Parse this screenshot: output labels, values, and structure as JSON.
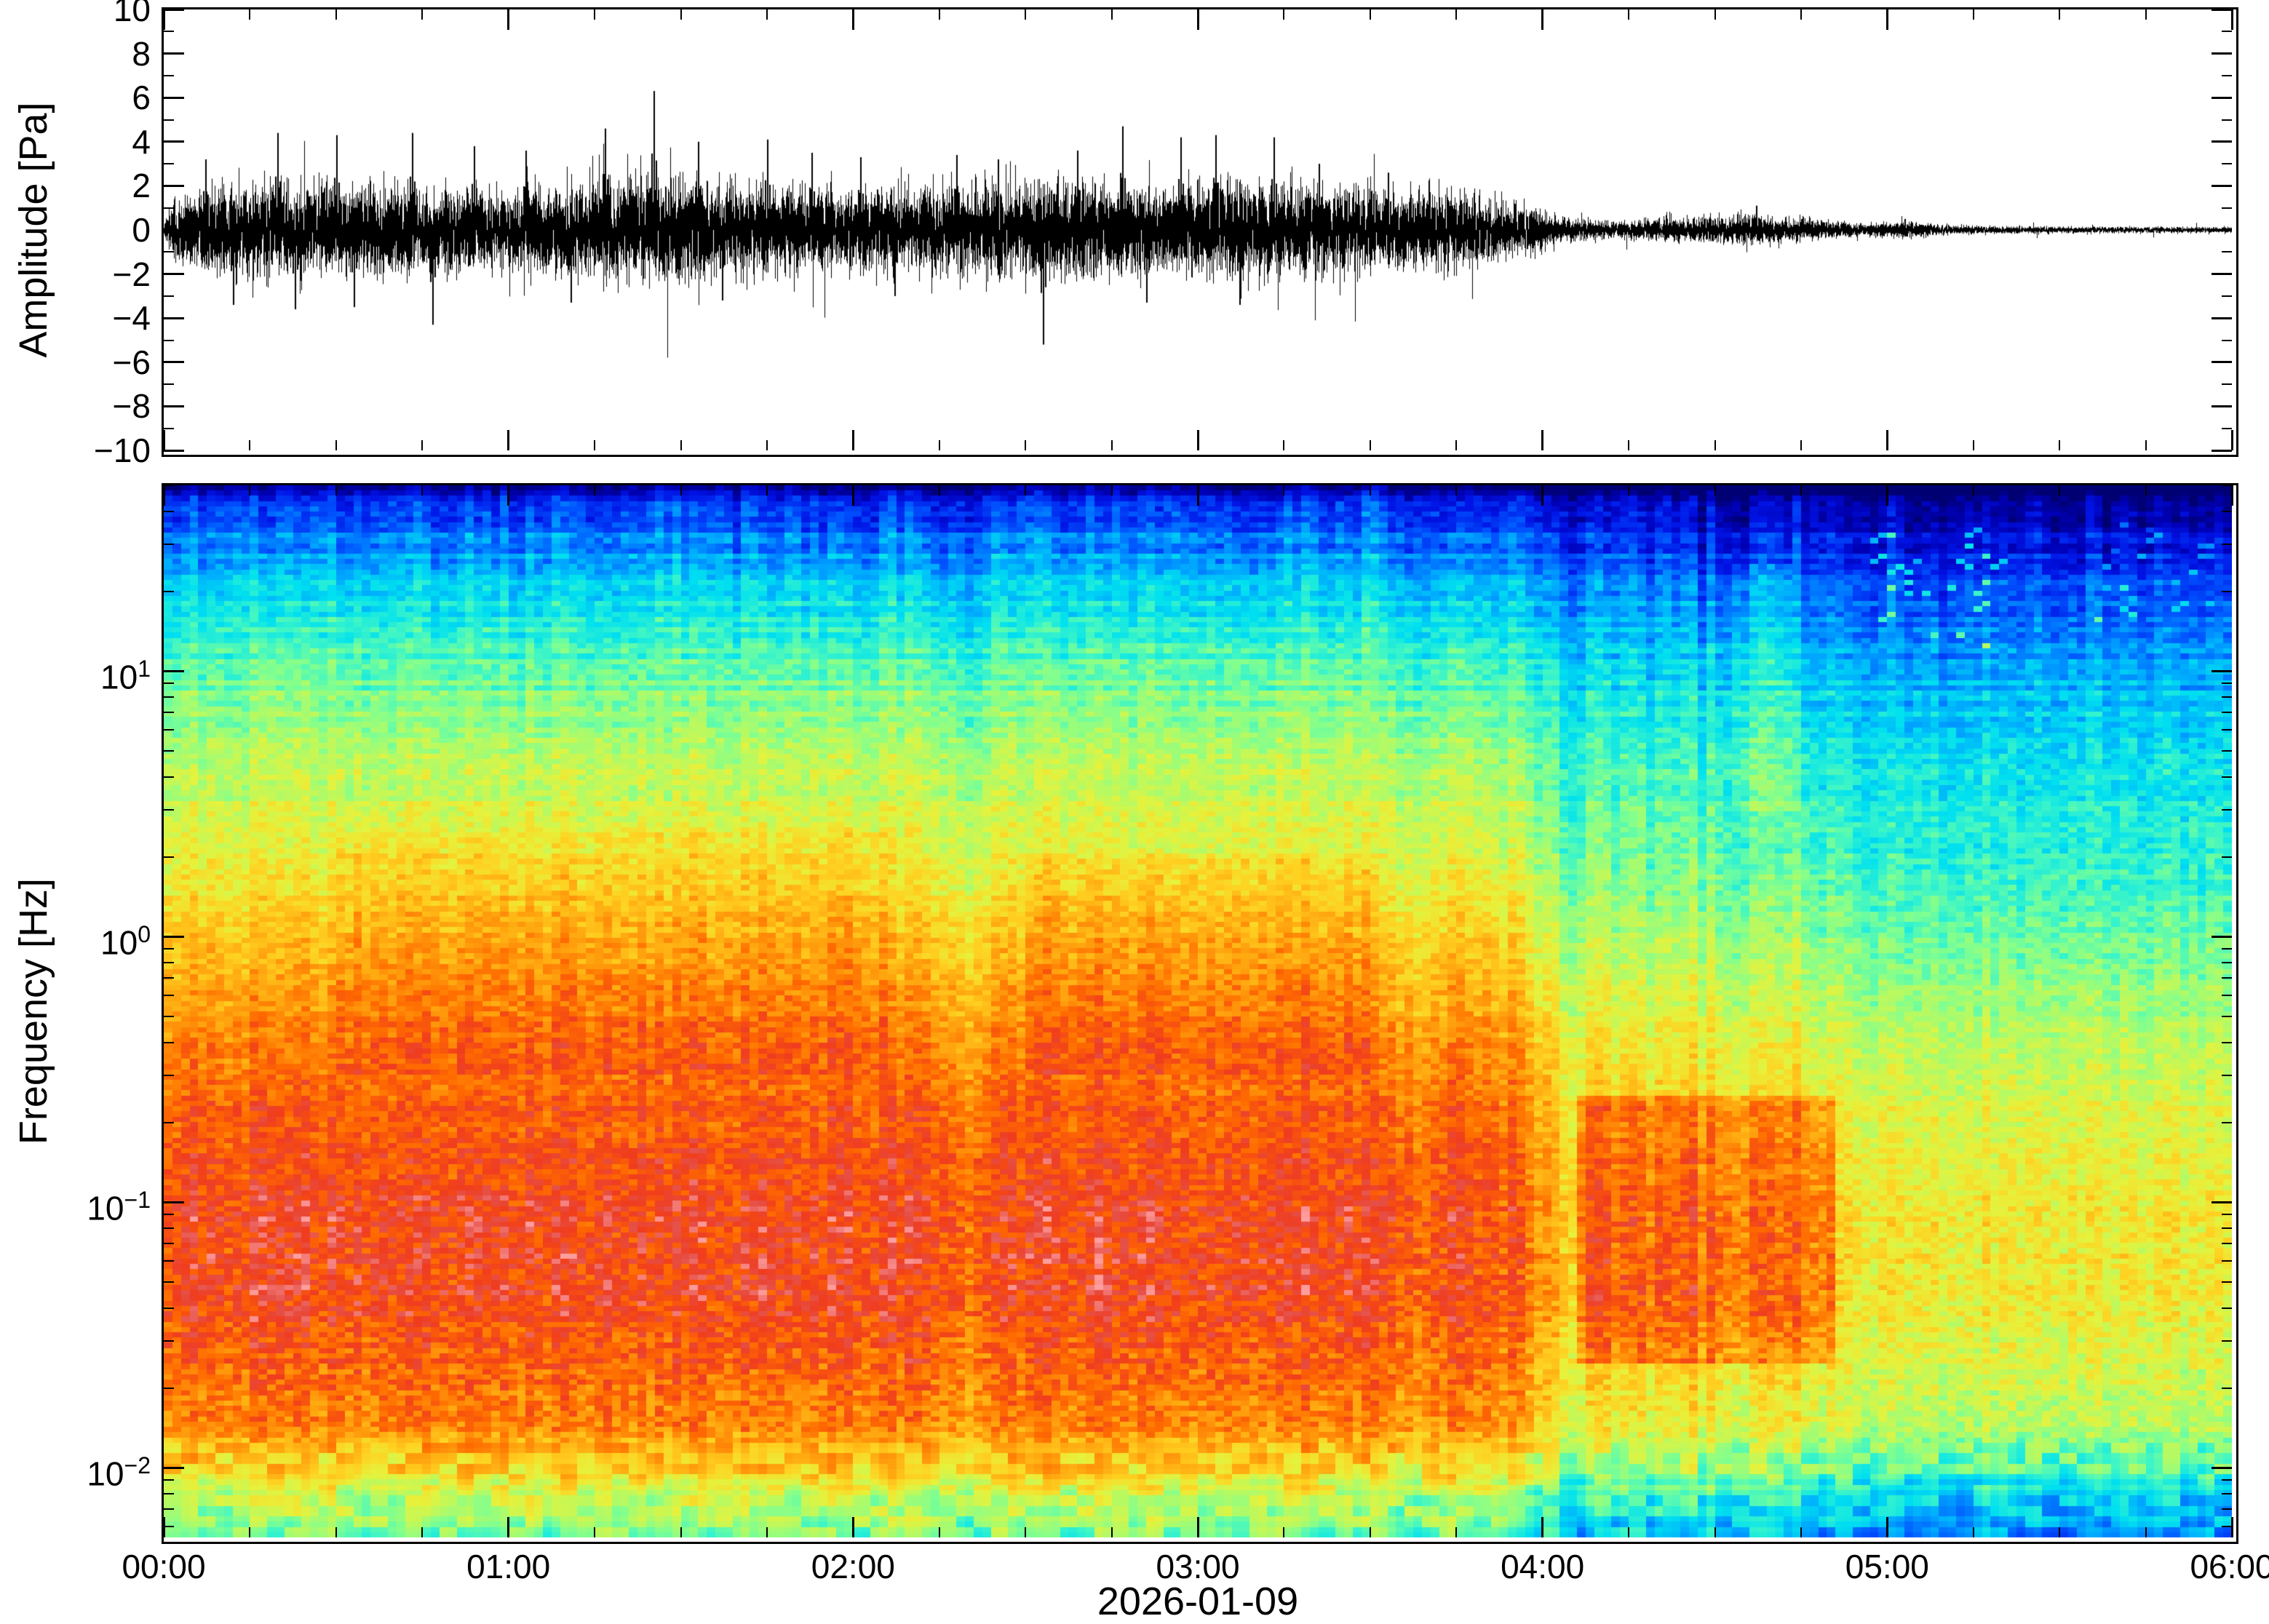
{
  "figure": {
    "background": "#ffffff"
  },
  "chart_data": [
    {
      "type": "line",
      "name": "infrasound-waveform",
      "ylabel": "Amplitude [Pa]",
      "ylim": [
        -10,
        10
      ],
      "yticks": [
        10,
        8,
        6,
        4,
        2,
        0,
        -2,
        -4,
        -6,
        -8,
        -10
      ],
      "ytick_labels": [
        "10",
        "8",
        "6",
        "4",
        "2",
        "0",
        "−2",
        "−4",
        "−6",
        "−8",
        "−10"
      ],
      "x_hours": [
        0,
        6
      ],
      "line_color": "#000000",
      "seed": 20260109,
      "envelope": {
        "t": [
          0.0,
          0.03,
          0.1,
          0.3,
          0.6,
          0.9,
          1.1,
          1.3,
          1.45,
          1.7,
          2.0,
          2.2,
          2.4,
          2.6,
          2.8,
          3.0,
          3.2,
          3.4,
          3.6,
          3.8,
          3.95,
          4.05,
          4.15,
          4.3,
          4.45,
          4.6,
          4.75,
          4.9,
          5.05,
          5.2,
          5.5,
          6.0
        ],
        "a": [
          0.15,
          0.7,
          0.95,
          1.1,
          1.05,
          0.95,
          1.0,
          1.15,
          1.25,
          1.05,
          0.95,
          1.0,
          1.1,
          1.15,
          1.05,
          1.1,
          1.15,
          1.0,
          0.9,
          0.85,
          0.6,
          0.3,
          0.22,
          0.25,
          0.3,
          0.35,
          0.28,
          0.15,
          0.18,
          0.1,
          0.08,
          0.07
        ]
      },
      "spikes": [
        {
          "t": 0.12,
          "a": 3.2
        },
        {
          "t": 0.2,
          "a": -3.4
        },
        {
          "t": 0.33,
          "a": 4.4
        },
        {
          "t": 0.38,
          "a": -3.6
        },
        {
          "t": 0.5,
          "a": 4.3
        },
        {
          "t": 0.55,
          "a": -3.5
        },
        {
          "t": 0.72,
          "a": 4.4
        },
        {
          "t": 0.78,
          "a": -4.3
        },
        {
          "t": 0.9,
          "a": 3.8
        },
        {
          "t": 1.05,
          "a": 3.6
        },
        {
          "t": 1.18,
          "a": -3.3
        },
        {
          "t": 1.28,
          "a": 4.6
        },
        {
          "t": 1.42,
          "a": 6.3
        },
        {
          "t": 1.55,
          "a": 4.0
        },
        {
          "t": 1.62,
          "a": -3.2
        },
        {
          "t": 1.75,
          "a": 4.1
        },
        {
          "t": 1.88,
          "a": 3.5
        },
        {
          "t": 2.02,
          "a": 3.3
        },
        {
          "t": 2.12,
          "a": -3.0
        },
        {
          "t": 2.3,
          "a": 3.4
        },
        {
          "t": 2.42,
          "a": 3.2
        },
        {
          "t": 2.55,
          "a": -5.2
        },
        {
          "t": 2.65,
          "a": 3.6
        },
        {
          "t": 2.78,
          "a": 4.7
        },
        {
          "t": 2.85,
          "a": -3.3
        },
        {
          "t": 2.95,
          "a": 4.2
        },
        {
          "t": 3.05,
          "a": 4.3
        },
        {
          "t": 3.12,
          "a": -3.4
        },
        {
          "t": 3.22,
          "a": 4.2
        },
        {
          "t": 3.35,
          "a": 3.0
        },
        {
          "t": 3.55,
          "a": 2.6
        },
        {
          "t": 4.62,
          "a": 1.1
        },
        {
          "t": 5.05,
          "a": 0.5
        }
      ]
    },
    {
      "type": "heatmap",
      "name": "infrasound-spectrogram",
      "ylabel": "Frequency [Hz]",
      "xlabel": "2026-01-09",
      "freq_ticks": [
        {
          "f": 10,
          "exp": "1"
        },
        {
          "f": 1,
          "exp": "0"
        },
        {
          "f": 0.1,
          "exp": "−1"
        },
        {
          "f": 0.01,
          "exp": "−2"
        }
      ],
      "time_ticks": [
        {
          "t": 0,
          "label": "00:00"
        },
        {
          "t": 1,
          "label": "01:00"
        },
        {
          "t": 2,
          "label": "02:00"
        },
        {
          "t": 3,
          "label": "03:00"
        },
        {
          "t": 4,
          "label": "04:00"
        },
        {
          "t": 5,
          "label": "05:00"
        },
        {
          "t": 6,
          "label": "06:00"
        }
      ],
      "log_f_top": 1.7,
      "log_f_bottom": -2.262,
      "x_hours": [
        0,
        6
      ],
      "colormap": [
        [
          0.0,
          "#000073"
        ],
        [
          0.07,
          "#0000b4"
        ],
        [
          0.14,
          "#0014e6"
        ],
        [
          0.22,
          "#0055ff"
        ],
        [
          0.3,
          "#00a4ff"
        ],
        [
          0.38,
          "#00e0f0"
        ],
        [
          0.45,
          "#3cf5c8"
        ],
        [
          0.52,
          "#82ff8e"
        ],
        [
          0.58,
          "#b4fa64"
        ],
        [
          0.65,
          "#e6f23c"
        ],
        [
          0.72,
          "#ffd121"
        ],
        [
          0.79,
          "#ffa30e"
        ],
        [
          0.86,
          "#ff6a00"
        ],
        [
          0.92,
          "#f03c1e"
        ],
        [
          0.96,
          "#e65048"
        ],
        [
          1.0,
          "#ff9e9e"
        ]
      ],
      "base_power": [
        [
          -2.3,
          0.48
        ],
        [
          -2.1,
          0.62
        ],
        [
          -2.0,
          0.72
        ],
        [
          -1.85,
          0.82
        ],
        [
          -1.6,
          0.88
        ],
        [
          -1.3,
          0.92
        ],
        [
          -1.0,
          0.92
        ],
        [
          -0.7,
          0.89
        ],
        [
          -0.4,
          0.84
        ],
        [
          0.0,
          0.74
        ],
        [
          0.3,
          0.66
        ],
        [
          0.6,
          0.6
        ],
        [
          0.9,
          0.53
        ],
        [
          1.1,
          0.46
        ],
        [
          1.3,
          0.37
        ],
        [
          1.5,
          0.27
        ],
        [
          1.62,
          0.17
        ],
        [
          1.7,
          0.05
        ]
      ],
      "decay": [
        [
          0.0,
          0.0
        ],
        [
          3.93,
          0.0
        ],
        [
          4.02,
          0.17
        ],
        [
          4.75,
          0.17
        ],
        [
          4.95,
          0.24
        ],
        [
          6.0,
          0.25
        ]
      ],
      "decay_freq_weight": [
        [
          -2.3,
          1.0
        ],
        [
          0.0,
          1.0
        ],
        [
          1.7,
          0.55
        ]
      ],
      "dips": [
        {
          "t": 2.33,
          "halfwidth": 0.05,
          "dv": -0.05
        },
        {
          "t": 3.62,
          "halfwidth": 0.08,
          "dv": -0.04
        },
        {
          "t": 3.86,
          "halfwidth": 0.05,
          "dv": -0.05
        }
      ],
      "events": [
        {
          "t0": 0.5,
          "t1": 2.1,
          "f0": 0.3,
          "f1": 2.5,
          "dv": 0.04
        },
        {
          "t0": 2.5,
          "t1": 3.5,
          "f0": 0.3,
          "f1": 2.0,
          "dv": 0.04
        },
        {
          "t0": 4.1,
          "t1": 4.85,
          "f0": 0.025,
          "f1": 0.25,
          "dv": 0.12
        },
        {
          "t0": 4.55,
          "t1": 4.72,
          "f0": 3,
          "f1": 25,
          "dv": 0.06
        },
        {
          "t0": 4.95,
          "t1": 5.35,
          "f0": 12,
          "f1": 35,
          "dv": 0.22,
          "prob": 0.1
        },
        {
          "t0": 5.55,
          "t1": 5.95,
          "f0": 15,
          "f1": 40,
          "dv": 0.15,
          "prob": 0.05
        }
      ],
      "noise": {
        "column": 0.025,
        "column_active": 0.05,
        "column_active_t": [
          4.0,
          4.9
        ],
        "column_highfreq": 0.05,
        "row": 0.015,
        "row_highfreq": 0.03,
        "bin_lowf": 0.085,
        "bin_midf": 0.06,
        "bin_f": 0.05,
        "bin_hif": 0.045
      },
      "render": {
        "time_bins": 240,
        "freq_bins": 200,
        "seed": 7
      }
    }
  ]
}
